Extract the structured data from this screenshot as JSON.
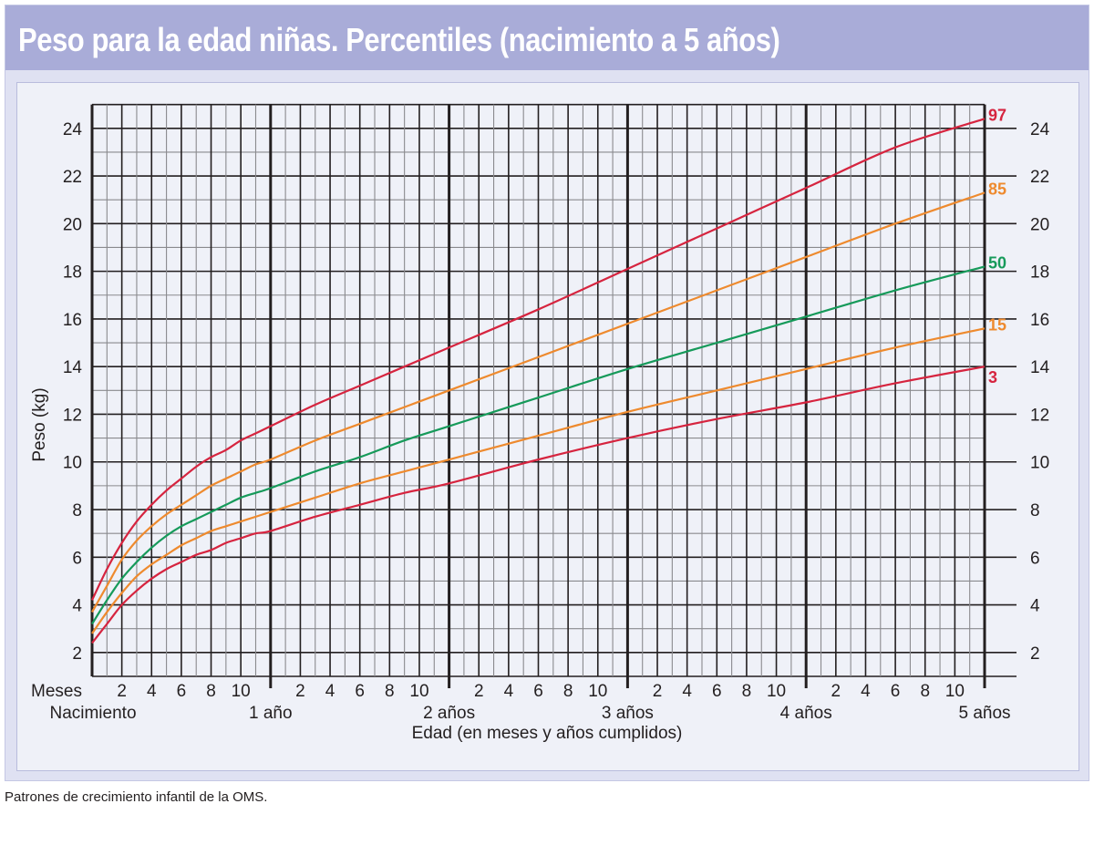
{
  "title": "Peso para la edad niñas. Percentiles (nacimiento a 5 años)",
  "footer": "Patrones de crecimiento infantil de la OMS.",
  "colors": {
    "header_bg": "#a9acd8",
    "outer_bg": "#dfe1f2",
    "inner_bg": "#eff1f8",
    "grid_major": "#231f20",
    "grid_minor": "#8a8a8e",
    "red": "#d6243f",
    "orange": "#ee8a2e",
    "green": "#169a5a"
  },
  "chart_data": {
    "type": "line",
    "title": "Peso para la edad niñas. Percentiles (nacimiento a 5 años)",
    "xlabel": "Edad (en meses y años cumplidos)",
    "ylabel": "Peso (kg)",
    "xlim": [
      0,
      60
    ],
    "ylim": [
      1,
      25
    ],
    "grid": true,
    "x_unit": "months",
    "x_row_label": "Meses",
    "x_month_ticks": [
      "2",
      "4",
      "6",
      "8",
      "10"
    ],
    "x_year_labels": [
      "Nacimiento",
      "1 año",
      "2 años",
      "3 años",
      "4 años",
      "5 años"
    ],
    "y_ticks": [
      2,
      4,
      6,
      8,
      10,
      12,
      14,
      16,
      18,
      20,
      22,
      24
    ],
    "legend_position": "right end of curves",
    "x": [
      0,
      1,
      2,
      3,
      4,
      5,
      6,
      7,
      8,
      9,
      10,
      11,
      12,
      15,
      18,
      21,
      24,
      30,
      36,
      42,
      48,
      54,
      60
    ],
    "series": [
      {
        "name": "97",
        "color": "#d6243f",
        "values": [
          4.2,
          5.5,
          6.6,
          7.5,
          8.2,
          8.8,
          9.3,
          9.8,
          10.2,
          10.5,
          10.9,
          11.2,
          11.5,
          12.4,
          13.2,
          14.0,
          14.8,
          16.4,
          18.1,
          19.8,
          21.5,
          23.2,
          24.4
        ]
      },
      {
        "name": "85",
        "color": "#ee8a2e",
        "values": [
          3.7,
          4.8,
          5.9,
          6.7,
          7.3,
          7.8,
          8.2,
          8.6,
          9.0,
          9.3,
          9.6,
          9.9,
          10.1,
          10.9,
          11.6,
          12.3,
          13.0,
          14.4,
          15.8,
          17.2,
          18.6,
          20.0,
          21.3
        ]
      },
      {
        "name": "50",
        "color": "#169a5a",
        "values": [
          3.2,
          4.2,
          5.1,
          5.8,
          6.4,
          6.9,
          7.3,
          7.6,
          7.9,
          8.2,
          8.5,
          8.7,
          8.9,
          9.6,
          10.2,
          10.9,
          11.5,
          12.7,
          13.9,
          15.0,
          16.1,
          17.2,
          18.2
        ]
      },
      {
        "name": "15",
        "color": "#ee8a2e",
        "values": [
          2.8,
          3.7,
          4.5,
          5.2,
          5.7,
          6.1,
          6.5,
          6.8,
          7.1,
          7.3,
          7.5,
          7.7,
          7.9,
          8.5,
          9.1,
          9.6,
          10.1,
          11.1,
          12.1,
          13.0,
          13.9,
          14.8,
          15.6
        ]
      },
      {
        "name": "3",
        "color": "#d6243f",
        "values": [
          2.4,
          3.2,
          4.0,
          4.6,
          5.1,
          5.5,
          5.8,
          6.1,
          6.3,
          6.6,
          6.8,
          7.0,
          7.1,
          7.7,
          8.2,
          8.7,
          9.1,
          10.1,
          11.0,
          11.8,
          12.5,
          13.3,
          14.0
        ]
      }
    ]
  }
}
